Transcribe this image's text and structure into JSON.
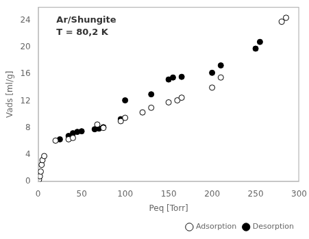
{
  "chart_data": {
    "type": "scatter",
    "annotations": [
      "Ar/Shungite",
      "T = 80,2 K"
    ],
    "xlabel": "Peq [Torr]",
    "ylabel": "Vads [ml/g]",
    "xlim": [
      0,
      300
    ],
    "ylim": [
      0,
      26
    ],
    "xticks": [
      0,
      50,
      100,
      150,
      200,
      250,
      300
    ],
    "yticks": [
      0,
      4,
      8,
      12,
      16,
      20,
      24
    ],
    "grid": false,
    "legend": "lower right",
    "series": [
      {
        "name": "Adsorption",
        "color": "white",
        "marker": "o",
        "x": [
          1,
          2,
          3,
          4,
          5,
          7,
          20,
          35,
          40,
          68,
          75,
          95,
          100,
          120,
          130,
          150,
          160,
          165,
          200,
          210,
          280,
          285
        ],
        "values": [
          0.3,
          0.8,
          1.5,
          2.5,
          3.2,
          3.8,
          6.1,
          6.3,
          6.5,
          8.5,
          8.0,
          9.0,
          9.5,
          10.3,
          11.0,
          11.8,
          12.1,
          12.5,
          14.0,
          15.5,
          23.8,
          24.4
        ]
      },
      {
        "name": "Desorption",
        "color": "black",
        "marker": "o",
        "x": [
          25,
          35,
          40,
          45,
          50,
          65,
          70,
          75,
          95,
          100,
          130,
          150,
          155,
          165,
          200,
          210,
          250,
          255
        ],
        "values": [
          6.3,
          6.8,
          7.2,
          7.4,
          7.5,
          7.8,
          7.9,
          8.1,
          9.3,
          12.1,
          13.0,
          15.2,
          15.5,
          15.6,
          16.2,
          17.3,
          19.8,
          20.8
        ]
      }
    ]
  }
}
